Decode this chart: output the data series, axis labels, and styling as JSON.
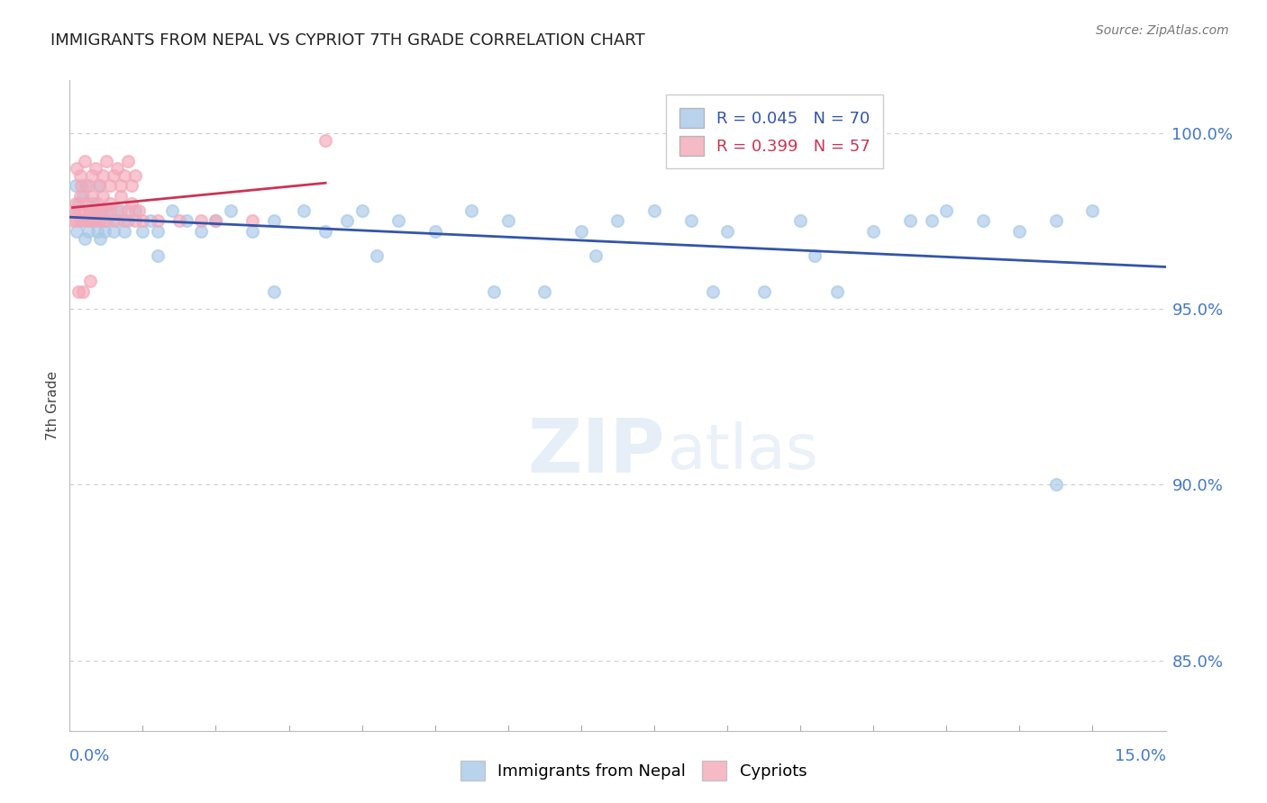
{
  "title": "IMMIGRANTS FROM NEPAL VS CYPRIOT 7TH GRADE CORRELATION CHART",
  "source": "Source: ZipAtlas.com",
  "ylabel": "7th Grade",
  "y_ticks": [
    85.0,
    90.0,
    95.0,
    100.0
  ],
  "x_min": 0.0,
  "x_max": 15.0,
  "y_min": 83.0,
  "y_max": 101.5,
  "legend1_R": "0.045",
  "legend1_N": "70",
  "legend2_R": "0.399",
  "legend2_N": "57",
  "blue_color": "#a8c8e8",
  "pink_color": "#f4a8b8",
  "line_blue": "#3355aa",
  "line_pink": "#cc3355",
  "nepal_x": [
    0.05,
    0.08,
    0.1,
    0.12,
    0.15,
    0.18,
    0.2,
    0.22,
    0.25,
    0.28,
    0.3,
    0.32,
    0.35,
    0.38,
    0.4,
    0.42,
    0.45,
    0.48,
    0.5,
    0.55,
    0.6,
    0.65,
    0.7,
    0.75,
    0.8,
    0.9,
    1.0,
    1.1,
    1.2,
    1.4,
    1.6,
    1.8,
    2.0,
    2.2,
    2.5,
    2.8,
    3.2,
    3.5,
    3.8,
    4.0,
    4.5,
    5.0,
    5.5,
    6.0,
    6.5,
    7.0,
    7.5,
    8.0,
    8.5,
    9.0,
    9.5,
    10.0,
    10.5,
    11.0,
    11.5,
    12.0,
    12.5,
    13.0,
    13.5,
    14.0,
    1.2,
    2.8,
    4.2,
    5.8,
    7.2,
    8.8,
    10.2,
    11.8,
    0.35,
    13.5
  ],
  "nepal_y": [
    97.8,
    98.5,
    97.2,
    98.0,
    97.5,
    98.2,
    97.0,
    98.5,
    97.2,
    97.8,
    97.5,
    98.0,
    97.8,
    97.2,
    98.5,
    97.0,
    97.8,
    97.2,
    97.5,
    97.8,
    97.2,
    97.5,
    97.8,
    97.2,
    97.5,
    97.8,
    97.2,
    97.5,
    97.2,
    97.8,
    97.5,
    97.2,
    97.5,
    97.8,
    97.2,
    97.5,
    97.8,
    97.2,
    97.5,
    97.8,
    97.5,
    97.2,
    97.8,
    97.5,
    95.5,
    97.2,
    97.5,
    97.8,
    97.5,
    97.2,
    95.5,
    97.5,
    95.5,
    97.2,
    97.5,
    97.8,
    97.5,
    97.2,
    97.5,
    97.8,
    96.5,
    95.5,
    96.5,
    95.5,
    96.5,
    95.5,
    96.5,
    97.5,
    97.5,
    90.0
  ],
  "cypriot_x": [
    0.04,
    0.06,
    0.08,
    0.1,
    0.12,
    0.14,
    0.16,
    0.18,
    0.2,
    0.22,
    0.25,
    0.28,
    0.3,
    0.32,
    0.35,
    0.38,
    0.4,
    0.42,
    0.45,
    0.48,
    0.5,
    0.55,
    0.6,
    0.65,
    0.7,
    0.75,
    0.8,
    0.85,
    0.9,
    0.95,
    0.1,
    0.15,
    0.2,
    0.25,
    0.3,
    0.35,
    0.4,
    0.45,
    0.5,
    0.55,
    0.6,
    0.65,
    0.7,
    0.75,
    0.8,
    0.85,
    0.9,
    1.0,
    1.2,
    1.5,
    1.8,
    2.0,
    2.5,
    0.12,
    0.18,
    0.28,
    3.5
  ],
  "cypriot_y": [
    97.5,
    97.8,
    98.0,
    97.5,
    97.8,
    98.2,
    98.5,
    97.5,
    97.8,
    98.0,
    97.5,
    97.8,
    98.2,
    97.5,
    97.8,
    98.0,
    97.5,
    97.8,
    98.2,
    97.5,
    97.8,
    98.0,
    97.5,
    97.8,
    98.2,
    97.5,
    97.8,
    98.0,
    97.5,
    97.8,
    99.0,
    98.8,
    99.2,
    98.5,
    98.8,
    99.0,
    98.5,
    98.8,
    99.2,
    98.5,
    98.8,
    99.0,
    98.5,
    98.8,
    99.2,
    98.5,
    98.8,
    97.5,
    97.5,
    97.5,
    97.5,
    97.5,
    97.5,
    95.5,
    95.5,
    95.8,
    99.8
  ]
}
